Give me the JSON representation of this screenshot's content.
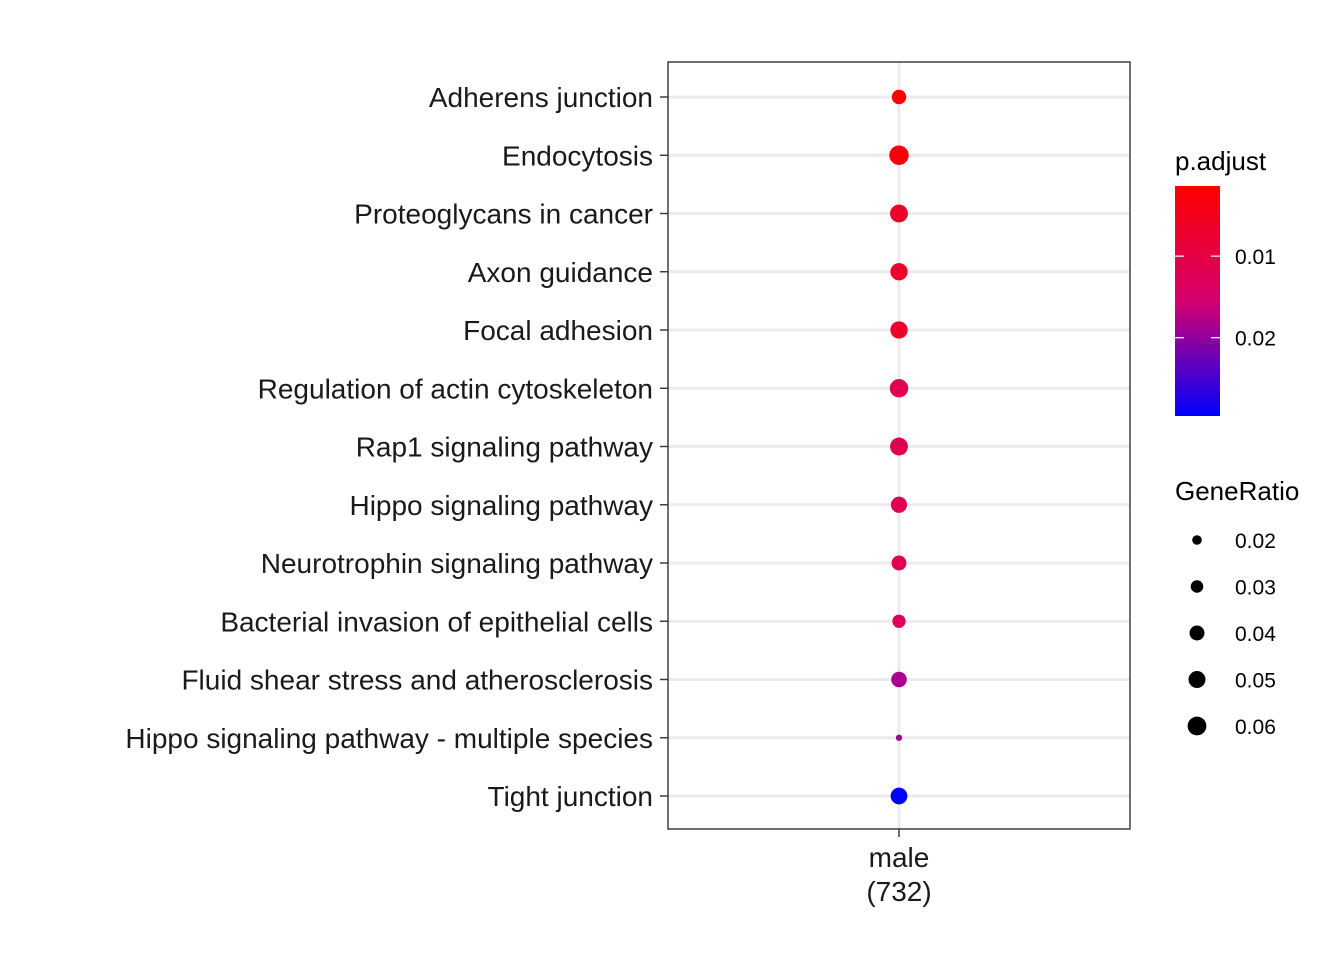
{
  "chart_data": {
    "type": "scatter",
    "title": "",
    "xlabel": "",
    "ylabel": "",
    "x_category": "male",
    "x_category_count": "(732)",
    "categories": [
      "Adherens junction",
      "Endocytosis",
      "Proteoglycans in cancer",
      "Axon guidance",
      "Focal adhesion",
      "Regulation of actin cytoskeleton",
      "Rap1 signaling pathway",
      "Hippo signaling pathway",
      "Neurotrophin signaling pathway",
      "Bacterial invasion of epithelial cells",
      "Fluid shear stress and atherosclerosis",
      "Hippo signaling pathway - multiple species",
      "Tight junction"
    ],
    "gene_ratio": [
      0.038,
      0.064,
      0.055,
      0.052,
      0.052,
      0.058,
      0.055,
      0.046,
      0.04,
      0.033,
      0.043,
      0.012,
      0.049
    ],
    "p_adjust": [
      0.0017,
      0.003,
      0.007,
      0.007,
      0.007,
      0.0115,
      0.0115,
      0.012,
      0.012,
      0.013,
      0.0185,
      0.0195,
      0.03
    ],
    "grid": true,
    "color_legend": {
      "title": "p.adjust",
      "ticks": [
        {
          "value": 0.01,
          "label": "0.01"
        },
        {
          "value": 0.02,
          "label": "0.02"
        }
      ],
      "range": [
        0.0014,
        0.0296
      ],
      "low_color": "#ff0000",
      "high_color": "#0000ff"
    },
    "size_legend": {
      "title": "GeneRatio",
      "entries": [
        {
          "value": 0.02,
          "label": "0.02"
        },
        {
          "value": 0.03,
          "label": "0.03"
        },
        {
          "value": 0.04,
          "label": "0.04"
        },
        {
          "value": 0.05,
          "label": "0.05"
        },
        {
          "value": 0.06,
          "label": "0.06"
        }
      ]
    },
    "legend_position": "right"
  }
}
